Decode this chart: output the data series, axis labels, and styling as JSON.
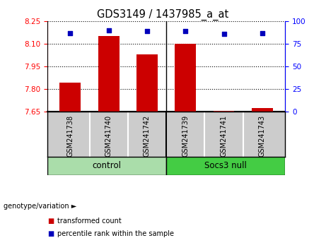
{
  "title": "GDS3149 / 1437985_a_at",
  "samples": [
    "GSM241738",
    "GSM241740",
    "GSM241742",
    "GSM241739",
    "GSM241741",
    "GSM241743"
  ],
  "bar_values": [
    7.84,
    8.15,
    8.03,
    8.1,
    7.656,
    7.672
  ],
  "percentile_values": [
    87,
    90,
    89,
    89,
    86,
    87
  ],
  "ylim_left": [
    7.65,
    8.25
  ],
  "yticks_left": [
    7.65,
    7.8,
    7.95,
    8.1,
    8.25
  ],
  "ylim_right": [
    0,
    100
  ],
  "yticks_right": [
    0,
    25,
    50,
    75,
    100
  ],
  "bar_color": "#CC0000",
  "dot_color": "#0000BB",
  "plot_bg_color": "#ffffff",
  "sample_bg_color": "#cccccc",
  "group1_color": "#aaddaa",
  "group2_color": "#44cc44",
  "legend_items": [
    "transformed count",
    "percentile rank within the sample"
  ],
  "legend_colors": [
    "#CC0000",
    "#0000BB"
  ],
  "genotype_label": "genotype/variation ►"
}
